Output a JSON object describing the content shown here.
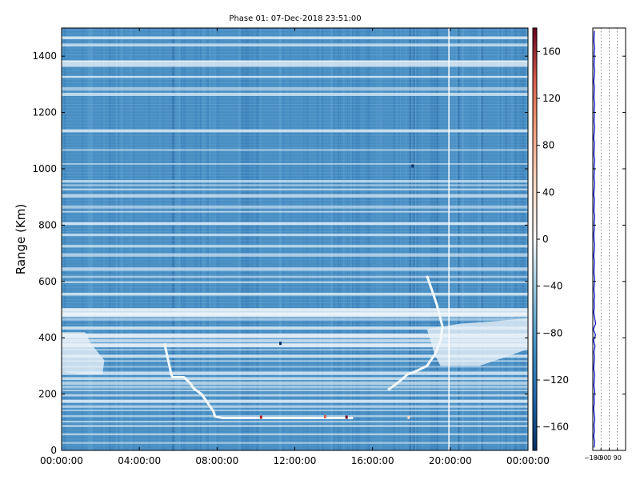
{
  "chart_data": [
    {
      "type": "heatmap",
      "title": "Phase 01: 07-Dec-2018 23:51:00",
      "ylabel": "Range (Km)",
      "xlabel": "",
      "x_tick_labels": [
        "00:00:00",
        "04:00:00",
        "08:00:00",
        "12:00:00",
        "16:00:00",
        "20:00:00",
        "00:00:00"
      ],
      "x_range_hours": [
        0,
        24
      ],
      "ylim": [
        0,
        1500
      ],
      "y_ticks": [
        0,
        200,
        400,
        600,
        800,
        1000,
        1200,
        1400
      ],
      "colorbar": {
        "ticks": [
          -160,
          -120,
          -80,
          -40,
          0,
          40,
          80,
          120,
          160
        ],
        "range": [
          -180,
          180
        ],
        "colormap": "RdBu_r"
      },
      "bright_horizontal_bands_km": [
        1470,
        1445,
        1385,
        1330,
        1290,
        1270,
        1140,
        1070,
        1020,
        960,
        945,
        930,
        910,
        870,
        850,
        810,
        770,
        730,
        700,
        650,
        620,
        600,
        560,
        505,
        490,
        470,
        440,
        415,
        395,
        380,
        360,
        340,
        320,
        300,
        280,
        260,
        245,
        230,
        215,
        200,
        180,
        160,
        145,
        125,
        105,
        90,
        60,
        30
      ],
      "feature_trace_morning": [
        [
          5.3,
          380
        ],
        [
          5.45,
          330
        ],
        [
          5.55,
          300
        ],
        [
          5.65,
          270
        ],
        [
          5.7,
          260
        ],
        [
          6.3,
          260
        ],
        [
          6.6,
          240
        ],
        [
          6.8,
          220
        ],
        [
          7.2,
          200
        ],
        [
          7.4,
          180
        ],
        [
          7.6,
          160
        ],
        [
          7.8,
          140
        ],
        [
          7.9,
          120
        ],
        [
          8.3,
          115
        ],
        [
          10,
          115
        ],
        [
          12,
          115
        ],
        [
          14,
          115
        ],
        [
          15,
          115
        ]
      ],
      "feature_trace_evening": [
        [
          16.8,
          215
        ],
        [
          17.3,
          240
        ],
        [
          17.8,
          270
        ],
        [
          18.2,
          280
        ],
        [
          18.8,
          300
        ],
        [
          19.2,
          340
        ],
        [
          19.5,
          390
        ],
        [
          19.6,
          440
        ],
        [
          19.3,
          520
        ],
        [
          19.1,
          560
        ],
        [
          18.9,
          600
        ],
        [
          18.8,
          620
        ]
      ],
      "feature_region_morning": [
        [
          0,
          420
        ],
        [
          0,
          280
        ],
        [
          1.0,
          270
        ],
        [
          2.1,
          270
        ],
        [
          2.2,
          320
        ],
        [
          1.5,
          380
        ],
        [
          1.2,
          420
        ]
      ],
      "feature_region_evening": [
        [
          18.8,
          430
        ],
        [
          19.2,
          340
        ],
        [
          19.5,
          300
        ],
        [
          21.5,
          300
        ],
        [
          23.2,
          340
        ],
        [
          24,
          360
        ],
        [
          24,
          470
        ],
        [
          22.5,
          460
        ],
        [
          20.5,
          450
        ]
      ],
      "white_vertical_line_hours": 19.9
    },
    {
      "type": "line",
      "x_tick_labels": [
        "−180",
        "−90",
        "0",
        "90"
      ],
      "xlim": [
        -180,
        180
      ],
      "ylim": [
        0,
        1500
      ],
      "series": [
        {
          "x_mean": -165,
          "y_samples": [
            10,
            30,
            50,
            70,
            90,
            110,
            130,
            150,
            170,
            190,
            210,
            230,
            250,
            270,
            290,
            310,
            330,
            350,
            370,
            390,
            410,
            430,
            450,
            470,
            490,
            510,
            530,
            550,
            570,
            590,
            610,
            630,
            650,
            670,
            690,
            710,
            730,
            750,
            770,
            790,
            810,
            830,
            850,
            870,
            890,
            910,
            930,
            950,
            970,
            990,
            1010,
            1030,
            1050,
            1070,
            1090,
            1110,
            1130,
            1150,
            1170,
            1190,
            1210,
            1230,
            1250,
            1270,
            1290,
            1310,
            1330,
            1350,
            1370,
            1390,
            1410,
            1430,
            1450,
            1470,
            1490
          ],
          "x_samples": [
            -166,
            -160,
            -170,
            -162,
            -168,
            -158,
            -165,
            -171,
            -163,
            -167,
            -159,
            -169,
            -164,
            -161,
            -170,
            -166,
            -162,
            -168,
            -155,
            -172,
            -150,
            -175,
            -148,
            -160,
            -170,
            -163,
            -167,
            -161,
            -169,
            -164,
            -160,
            -168,
            -166,
            -162,
            -170,
            -164,
            -161,
            -167,
            -169,
            -163,
            -165,
            -160,
            -168,
            -166,
            -162,
            -170,
            -164,
            -161,
            -167,
            -163,
            -165,
            -160,
            -168,
            -166,
            -162,
            -170,
            -164,
            -161,
            -167,
            -163,
            -165,
            -160,
            -168,
            -166,
            -162,
            -170,
            -164,
            -161,
            -167,
            -163,
            -165,
            -160,
            -168,
            -166,
            -162
          ]
        }
      ]
    }
  ]
}
